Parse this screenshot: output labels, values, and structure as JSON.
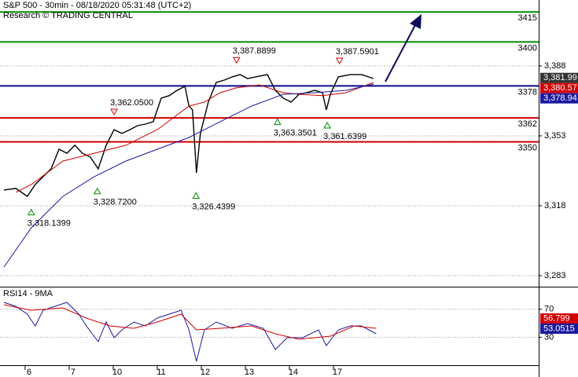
{
  "header": {
    "title": "S&P 500 - 30min - 08/18/2020 05:31:48 (UTC+2)",
    "source": "Research © TRADING CENTRAL"
  },
  "chart_data": [
    {
      "type": "line",
      "xlim": [
        -0.66,
        11.57
      ],
      "ylim": [
        3277.5,
        3421
      ],
      "yticks": [
        {
          "value": 3388,
          "label": "3,388"
        },
        {
          "value": 3353,
          "label": "3,353"
        },
        {
          "value": 3318,
          "label": "3,318"
        },
        {
          "value": 3283,
          "label": "3,283"
        }
      ],
      "grid": true,
      "series": [
        {
          "color": "#000000",
          "x": [
            -0.57,
            -0.3,
            -0.04,
            0.14,
            0.32,
            0.5,
            0.68,
            0.86,
            1.04,
            1.21,
            1.39,
            1.57,
            1.75,
            1.93,
            2.11,
            2.29,
            2.46,
            2.64,
            2.82,
            3.0,
            3.18,
            3.36,
            3.54,
            3.63,
            3.71,
            3.8,
            3.89,
            4.07,
            4.25,
            4.43,
            4.61,
            4.79,
            4.96,
            5.14,
            5.41,
            5.59,
            5.77,
            5.95,
            6.13,
            6.3,
            6.48,
            6.66,
            6.75,
            6.84,
            7.02,
            7.29,
            7.55,
            7.82
          ],
          "values": [
            3325.9,
            3326.7,
            3322.7,
            3328.6,
            3332.6,
            3336.5,
            3346.3,
            3344.3,
            3348.3,
            3344.3,
            3342.4,
            3336.5,
            3348.3,
            3356.1,
            3354.2,
            3356.1,
            3358.1,
            3358.9,
            3360.1,
            3371.9,
            3373.1,
            3375.8,
            3377.8,
            3367.9,
            3366.0,
            3334.5,
            3354.2,
            3369.9,
            3379.7,
            3380.9,
            3382.5,
            3383.7,
            3381.7,
            3382.5,
            3383.7,
            3375.8,
            3371.9,
            3369.9,
            3373.8,
            3374.6,
            3375.8,
            3374.6,
            3366.0,
            3373.8,
            3382.5,
            3383.7,
            3383.7,
            3381.7
          ]
        },
        {
          "color": "#d00000",
          "x": [
            -0.3,
            0.05,
            0.77,
            1.48,
            2.2,
            2.91,
            3.63,
            3.98,
            4.34,
            4.7,
            5.23,
            5.77,
            6.13,
            6.66,
            7.2,
            7.82
          ],
          "values": [
            3324.7,
            3328.6,
            3340.4,
            3344.3,
            3348.3,
            3356.1,
            3367.9,
            3369.9,
            3374.6,
            3377.0,
            3378.5,
            3374.6,
            3373.8,
            3373.1,
            3374.6,
            3379.7
          ]
        },
        {
          "color": "#1a1aa0",
          "x": [
            -0.57,
            0.05,
            0.77,
            1.48,
            2.2,
            2.91,
            3.63,
            4.34,
            5.05,
            5.77,
            6.48,
            7.2,
            7.82
          ],
          "values": [
            3287.3,
            3307.0,
            3322.7,
            3332.6,
            3340.4,
            3346.3,
            3352.2,
            3360.1,
            3367.9,
            3373.8,
            3374.6,
            3375.8,
            3378.9
          ]
        }
      ],
      "levels": [
        {
          "value": 3415,
          "color": "#008c00"
        },
        {
          "value": 3400,
          "color": "#008c00"
        },
        {
          "value": 3378,
          "color": "#0a0a8c"
        },
        {
          "value": 3362,
          "color": "#d00000"
        },
        {
          "value": 3350,
          "color": "#d00000"
        }
      ],
      "annotations": [
        {
          "x": 4.71,
          "value": 3387.8899,
          "label": "3,387.8899",
          "kind": "high"
        },
        {
          "x": 7.05,
          "value": 3387.5901,
          "label": "3,387.5901",
          "kind": "high"
        },
        {
          "x": 1.93,
          "value": 3362.05,
          "label": "3,362.0500",
          "kind": "high"
        },
        {
          "x": 5.64,
          "value": 3363.3501,
          "label": "3,363.3501",
          "kind": "low"
        },
        {
          "x": 6.77,
          "value": 3361.6399,
          "label": "3,361.6399",
          "kind": "low"
        },
        {
          "x": 1.55,
          "value": 3328.72,
          "label": "3,328.7200",
          "kind": "low"
        },
        {
          "x": 3.79,
          "value": 3326.4399,
          "label": "3,326.4399",
          "kind": "low"
        },
        {
          "x": 0.05,
          "value": 3318.1399,
          "label": "3,318.1399",
          "kind": "low"
        }
      ],
      "tags": [
        {
          "value": 3381.99,
          "label": "3,381.99",
          "color": "#333333"
        },
        {
          "value": 3380.57,
          "label": "3,380.57",
          "color": "#d00000"
        },
        {
          "value": 3378.94,
          "label": "3,378.94",
          "color": "#1a1aa0"
        }
      ]
    },
    {
      "type": "line",
      "title": "RSI14 - 9MA",
      "xlim": [
        -0.66,
        11.57
      ],
      "xticks": [
        {
          "value": 0,
          "label": "6"
        },
        {
          "value": 1,
          "label": "7"
        },
        {
          "value": 2,
          "label": "10"
        },
        {
          "value": 3,
          "label": "11"
        },
        {
          "value": 4,
          "label": "12"
        },
        {
          "value": 5,
          "label": "13"
        },
        {
          "value": 6,
          "label": "14"
        },
        {
          "value": 7,
          "label": "17"
        }
      ],
      "ylim": [
        -10,
        100
      ],
      "yticks": [
        70,
        30
      ],
      "grid": true,
      "series": [
        {
          "color": "#1a1aa0",
          "x": [
            -0.57,
            -0.3,
            -0.04,
            0.14,
            0.32,
            0.59,
            0.86,
            1.13,
            1.3,
            1.57,
            1.75,
            1.93,
            2.11,
            2.38,
            2.64,
            2.91,
            3.18,
            3.45,
            3.63,
            3.8,
            3.98,
            4.25,
            4.61,
            4.96,
            5.32,
            5.59,
            5.86,
            6.21,
            6.57,
            6.75,
            7.02,
            7.29,
            7.55,
            7.88
          ],
          "values": [
            79.8,
            74.2,
            63.0,
            46.1,
            68.6,
            74.2,
            79.8,
            63.0,
            46.1,
            23.7,
            51.7,
            29.3,
            40.5,
            51.7,
            46.1,
            57.3,
            63.0,
            68.6,
            40.5,
            -4.4,
            40.5,
            51.7,
            42.8,
            49.5,
            42.8,
            12.4,
            29.3,
            29.3,
            40.5,
            18.1,
            40.5,
            46.1,
            46.1,
            34.9
          ]
        },
        {
          "color": "#d00000",
          "x": [
            -0.57,
            0.05,
            0.77,
            1.3,
            1.84,
            2.38,
            2.91,
            3.45,
            3.8,
            4.34,
            5.05,
            5.59,
            6.13,
            6.84,
            7.38,
            7.88
          ],
          "values": [
            76.4,
            68.6,
            71.9,
            57.3,
            46.1,
            42.8,
            51.7,
            63.0,
            40.5,
            42.8,
            46.1,
            34.9,
            27.0,
            31.5,
            46.1,
            42.8
          ]
        }
      ],
      "tags": [
        {
          "value": 56.799,
          "label": "56.799",
          "color": "#d00000"
        },
        {
          "value": 53.0515,
          "label": "53.0515",
          "color": "#1a1aa0"
        }
      ]
    }
  ]
}
